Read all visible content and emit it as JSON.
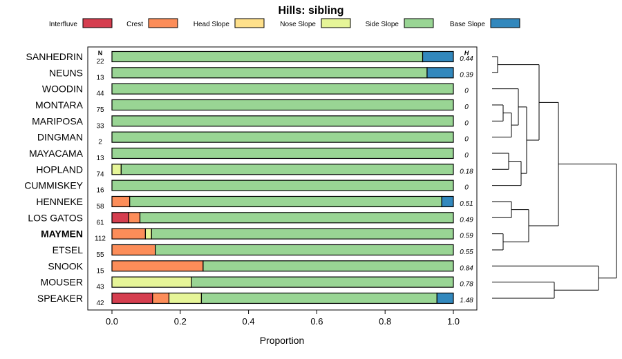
{
  "chart_data": {
    "type": "bar",
    "stacked": true,
    "orientation": "horizontal",
    "title": "Hills: sibling",
    "xlabel": "Proportion",
    "xlim": [
      0,
      1
    ],
    "xticks": [
      0.0,
      0.2,
      0.4,
      0.6,
      0.8,
      1.0
    ],
    "xtick_labels": [
      "0.0",
      "0.2",
      "0.4",
      "0.6",
      "0.8",
      "1.0"
    ],
    "n_header": "N",
    "h_header": "H",
    "legend": [
      {
        "name": "Interfluve",
        "color": "#d53e4f"
      },
      {
        "name": "Crest",
        "color": "#fc8d59"
      },
      {
        "name": "Head Slope",
        "color": "#fee08b"
      },
      {
        "name": "Nose Slope",
        "color": "#e6f598"
      },
      {
        "name": "Side Slope",
        "color": "#99d594"
      },
      {
        "name": "Base Slope",
        "color": "#3288bd"
      }
    ],
    "series_order": [
      "Interfluve",
      "Crest",
      "Head Slope",
      "Nose Slope",
      "Side Slope",
      "Base Slope"
    ],
    "rows": [
      {
        "name": "SANHEDRIN",
        "n": "22",
        "h": "0.44",
        "bold": false,
        "values": [
          0,
          0,
          0,
          0,
          0.91,
          0.09
        ]
      },
      {
        "name": "NEUNS",
        "n": "13",
        "h": "0.39",
        "bold": false,
        "values": [
          0,
          0,
          0,
          0,
          0.923,
          0.077
        ]
      },
      {
        "name": "WOODIN",
        "n": "44",
        "h": "0",
        "bold": false,
        "values": [
          0,
          0,
          0,
          0,
          1.0,
          0
        ]
      },
      {
        "name": "MONTARA",
        "n": "75",
        "h": "0",
        "bold": false,
        "values": [
          0,
          0,
          0,
          0,
          1.0,
          0
        ]
      },
      {
        "name": "MARIPOSA",
        "n": "33",
        "h": "0",
        "bold": false,
        "values": [
          0,
          0,
          0,
          0,
          1.0,
          0
        ]
      },
      {
        "name": "DINGMAN",
        "n": "2",
        "h": "0",
        "bold": false,
        "values": [
          0,
          0,
          0,
          0,
          1.0,
          0
        ]
      },
      {
        "name": "MAYACAMA",
        "n": "13",
        "h": "0",
        "bold": false,
        "values": [
          0,
          0,
          0,
          0,
          1.0,
          0
        ]
      },
      {
        "name": "HOPLAND",
        "n": "74",
        "h": "0.18",
        "bold": false,
        "values": [
          0,
          0,
          0,
          0.027,
          0.973,
          0
        ]
      },
      {
        "name": "CUMMISKEY",
        "n": "16",
        "h": "0",
        "bold": false,
        "values": [
          0,
          0,
          0,
          0,
          1.0,
          0
        ]
      },
      {
        "name": "HENNEKE",
        "n": "58",
        "h": "0.51",
        "bold": false,
        "values": [
          0,
          0.052,
          0,
          0,
          0.914,
          0.034
        ]
      },
      {
        "name": "LOS GATOS",
        "n": "61",
        "h": "0.49",
        "bold": false,
        "values": [
          0.049,
          0.033,
          0,
          0,
          0.918,
          0
        ]
      },
      {
        "name": "MAYMEN",
        "n": "112",
        "h": "0.59",
        "bold": true,
        "values": [
          0,
          0.098,
          0,
          0.018,
          0.884,
          0
        ]
      },
      {
        "name": "ETSEL",
        "n": "55",
        "h": "0.55",
        "bold": false,
        "values": [
          0,
          0.127,
          0,
          0,
          0.873,
          0
        ]
      },
      {
        "name": "SNOOK",
        "n": "15",
        "h": "0.84",
        "bold": false,
        "values": [
          0,
          0.267,
          0,
          0,
          0.733,
          0
        ]
      },
      {
        "name": "MOUSER",
        "n": "43",
        "h": "0.78",
        "bold": false,
        "values": [
          0,
          0,
          0,
          0.233,
          0.767,
          0
        ]
      },
      {
        "name": "SPEAKER",
        "n": "42",
        "h": "1.48",
        "bold": false,
        "values": [
          0.119,
          0.048,
          0,
          0.095,
          0.69,
          0.048
        ]
      }
    ]
  }
}
